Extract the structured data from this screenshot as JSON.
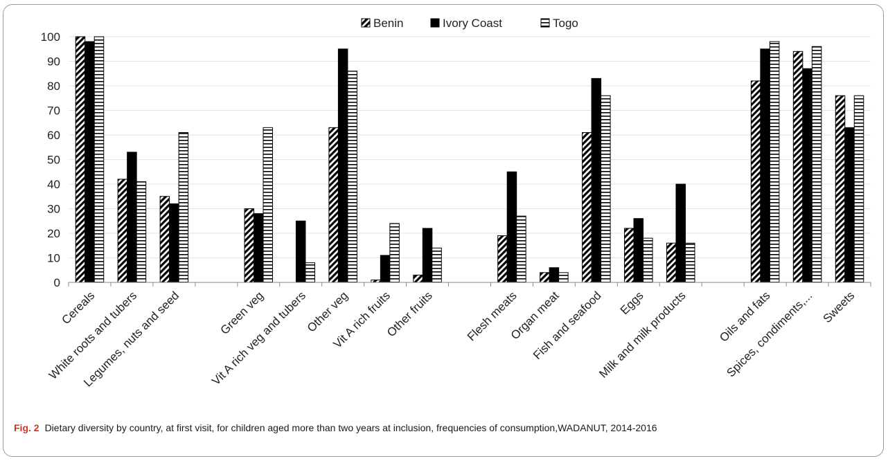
{
  "chart_data": {
    "type": "bar",
    "legend_position": "top-center",
    "grid": true,
    "ylim": [
      0,
      100
    ],
    "yticks": [
      0,
      10,
      20,
      30,
      40,
      50,
      60,
      70,
      80,
      90,
      100
    ],
    "categories": [
      "Cereals",
      "White roots and tubers",
      "Legumes, nuts and seed",
      "",
      "Green veg",
      "Vit A rich veg and tubers",
      "Other veg",
      "Vit A rich fruits",
      "Other fruits",
      "",
      "Flesh meats",
      "Organ meat",
      "Fish and seafood",
      "Eggs",
      "Milk and milk products",
      "",
      "Oils and fats",
      "Spices, condiments,...",
      "Sweets"
    ],
    "series": [
      {
        "name": "Benin",
        "pattern": "diagonal-hatch",
        "color": "#000000",
        "values": [
          100,
          42,
          35,
          null,
          30,
          0,
          63,
          1,
          3,
          null,
          19,
          4,
          61,
          22,
          16,
          null,
          82,
          94,
          76
        ]
      },
      {
        "name": "Ivory Coast",
        "pattern": "solid",
        "color": "#000000",
        "values": [
          98,
          53,
          32,
          null,
          28,
          25,
          95,
          11,
          22,
          null,
          45,
          6,
          83,
          26,
          40,
          null,
          95,
          87,
          63
        ]
      },
      {
        "name": "Togo",
        "pattern": "horizontal-lines",
        "color": "#000000",
        "values": [
          100,
          41,
          61,
          null,
          63,
          8,
          86,
          24,
          14,
          null,
          27,
          4,
          76,
          18,
          16,
          null,
          98,
          96,
          76
        ]
      }
    ]
  },
  "caption": {
    "label": "Fig. 2",
    "text": "Dietary diversity by country, at first visit, for children aged more than two years at inclusion, frequencies of consumption,WADANUT, 2014-2016"
  }
}
